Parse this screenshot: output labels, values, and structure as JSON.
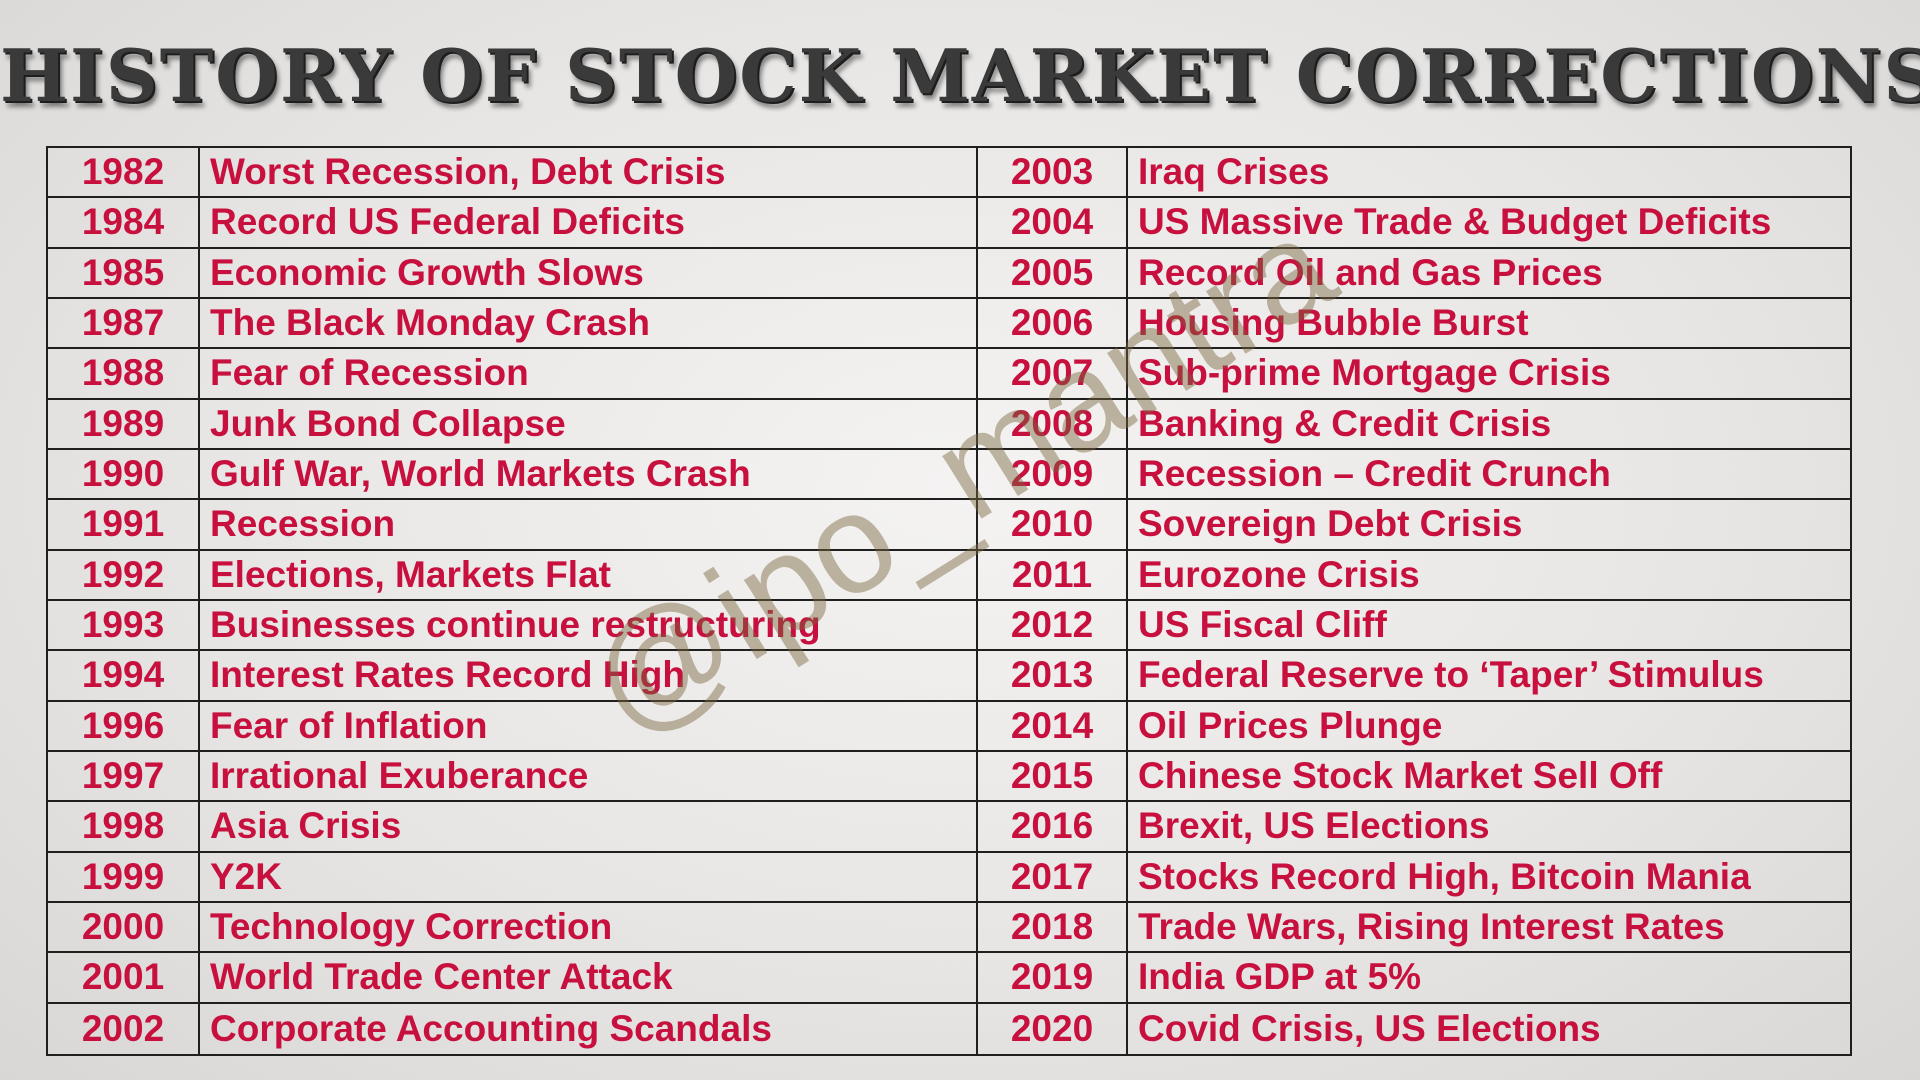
{
  "title": "HISTORY OF STOCK MARKET CORRECTIONS",
  "watermark": "@ipo_mantra",
  "colors": {
    "text": "#c8103f",
    "title": "#3a3a3a",
    "border": "#1f1f1f"
  },
  "corrections": {
    "left": [
      {
        "year": "1982",
        "event": "Worst Recession, Debt Crisis"
      },
      {
        "year": "1984",
        "event": "Record US Federal Deficits"
      },
      {
        "year": "1985",
        "event": "Economic Growth Slows"
      },
      {
        "year": "1987",
        "event": "The Black Monday Crash"
      },
      {
        "year": "1988",
        "event": "Fear of Recession"
      },
      {
        "year": "1989",
        "event": "Junk Bond Collapse"
      },
      {
        "year": "1990",
        "event": "Gulf War, World Markets Crash"
      },
      {
        "year": "1991",
        "event": "Recession"
      },
      {
        "year": "1992",
        "event": "Elections, Markets Flat"
      },
      {
        "year": "1993",
        "event": "Businesses continue restructuring"
      },
      {
        "year": "1994",
        "event": "Interest Rates Record High"
      },
      {
        "year": "1996",
        "event": "Fear of Inflation"
      },
      {
        "year": "1997",
        "event": "Irrational Exuberance"
      },
      {
        "year": "1998",
        "event": "Asia Crisis"
      },
      {
        "year": "1999",
        "event": "Y2K"
      },
      {
        "year": "2000",
        "event": "Technology Correction"
      },
      {
        "year": "2001",
        "event": "World Trade Center Attack"
      },
      {
        "year": "2002",
        "event": "Corporate Accounting Scandals"
      }
    ],
    "right": [
      {
        "year": "2003",
        "event": "Iraq Crises"
      },
      {
        "year": "2004",
        "event": "US Massive Trade & Budget Deficits"
      },
      {
        "year": "2005",
        "event": "Record Oil and Gas Prices"
      },
      {
        "year": "2006",
        "event": "Housing Bubble Burst"
      },
      {
        "year": "2007",
        "event": "Sub-prime Mortgage Crisis"
      },
      {
        "year": "2008",
        "event": "Banking & Credit Crisis"
      },
      {
        "year": "2009",
        "event": "Recession – Credit Crunch"
      },
      {
        "year": "2010",
        "event": "Sovereign Debt Crisis"
      },
      {
        "year": "2011",
        "event": "Eurozone Crisis"
      },
      {
        "year": "2012",
        "event": "US Fiscal Cliff"
      },
      {
        "year": "2013",
        "event": "Federal Reserve to ‘Taper’ Stimulus"
      },
      {
        "year": "2014",
        "event": "Oil Prices Plunge"
      },
      {
        "year": "2015",
        "event": "Chinese Stock Market Sell Off"
      },
      {
        "year": "2016",
        "event": "Brexit, US Elections"
      },
      {
        "year": "2017",
        "event": "Stocks Record High, Bitcoin Mania"
      },
      {
        "year": "2018",
        "event": "Trade Wars, Rising Interest Rates"
      },
      {
        "year": "2019",
        "event": "India GDP at 5%"
      },
      {
        "year": "2020",
        "event": "Covid Crisis, US Elections"
      }
    ]
  }
}
